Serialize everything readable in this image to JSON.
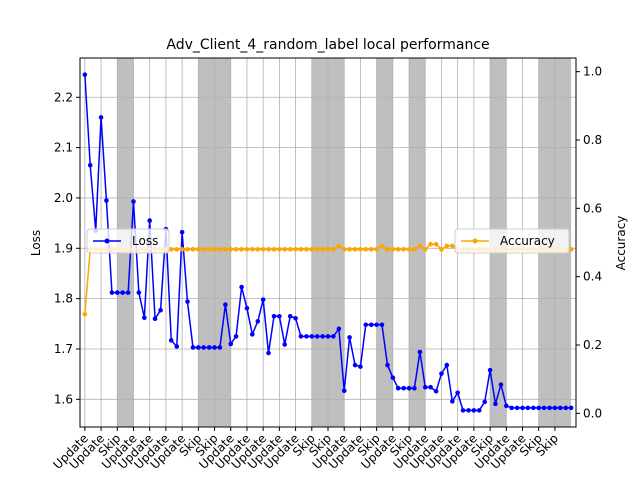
{
  "chart_data": {
    "type": "line",
    "title": "Adv_Client_4_random_label local performance",
    "ylabel_left": "Loss",
    "ylabel_right": "Accuracy",
    "ylim_left": [
      1.545,
      2.278
    ],
    "ylim_right": [
      -0.04,
      1.04
    ],
    "yticks_left": [
      1.6,
      1.7,
      1.8,
      1.9,
      2.0,
      2.1,
      2.2
    ],
    "yticks_right": [
      0.0,
      0.2,
      0.4,
      0.6,
      0.8,
      1.0
    ],
    "xlim": [
      -0.3,
      30.3
    ],
    "grid": true,
    "legend_left": {
      "label": "Loss",
      "placement": "center-left"
    },
    "legend_right": {
      "label": "Accuracy",
      "placement": "center-right"
    },
    "x_categories": [
      "Update",
      "Update",
      "Skip",
      "Update",
      "Update",
      "Update",
      "Update",
      "Skip",
      "Skip",
      "Update",
      "Update",
      "Update",
      "Update",
      "Update",
      "Skip",
      "Skip",
      "Update",
      "Update",
      "Skip",
      "Update",
      "Skip",
      "Update",
      "Update",
      "Update",
      "Update",
      "Skip",
      "Update",
      "Update",
      "Skip",
      "Skip"
    ],
    "skip_indices": [
      2,
      7,
      8,
      14,
      15,
      18,
      20,
      25,
      28,
      29
    ],
    "colors": {
      "loss": "#0000ff",
      "accuracy": "#ffa500",
      "skip_band": "#808080",
      "grid": "#b0b0b0"
    },
    "series": [
      {
        "name": "Loss",
        "x": [
          0,
          0.33,
          0.67,
          1,
          1.33,
          1.67,
          2,
          2.33,
          2.67,
          3,
          3.33,
          3.67,
          4,
          4.33,
          4.67,
          5,
          5.33,
          5.67,
          6,
          6.33,
          6.67,
          7,
          7.33,
          7.67,
          8,
          8.33,
          8.67,
          9,
          9.33,
          9.67,
          10,
          10.33,
          10.67,
          11,
          11.33,
          11.67,
          12,
          12.33,
          12.67,
          13,
          13.33,
          13.67,
          14,
          14.33,
          14.67,
          15,
          15.33,
          15.67,
          16,
          16.33,
          16.67,
          17,
          17.33,
          17.67,
          18,
          18.33,
          18.67,
          19,
          19.33,
          19.67,
          20,
          20.33,
          20.67,
          21,
          21.33,
          21.67,
          22,
          22.33,
          22.67,
          23,
          23.33,
          23.67,
          24,
          24.33,
          24.67,
          25,
          25.33,
          25.67,
          26,
          26.33,
          26.67,
          27,
          27.33,
          27.67,
          28,
          28.33,
          28.67,
          29,
          29.33,
          29.67,
          30
        ],
        "values": [
          2.245,
          2.065,
          1.935,
          2.16,
          1.995,
          1.812,
          1.812,
          1.812,
          1.812,
          1.993,
          1.812,
          1.762,
          1.955,
          1.76,
          1.777,
          1.938,
          1.717,
          1.705,
          1.932,
          1.794,
          1.703,
          1.703,
          1.703,
          1.703,
          1.703,
          1.703,
          1.788,
          1.71,
          1.725,
          1.823,
          1.781,
          1.729,
          1.755,
          1.798,
          1.692,
          1.765,
          1.765,
          1.709,
          1.765,
          1.761,
          1.725,
          1.725,
          1.725,
          1.725,
          1.725,
          1.725,
          1.725,
          1.74,
          1.617,
          1.723,
          1.668,
          1.665,
          1.748,
          1.748,
          1.748,
          1.748,
          1.668,
          1.643,
          1.622,
          1.622,
          1.622,
          1.622,
          1.694,
          1.624,
          1.624,
          1.616,
          1.651,
          1.668,
          1.596,
          1.613,
          1.578,
          1.578,
          1.578,
          1.578,
          1.595,
          1.658,
          1.591,
          1.629,
          1.587,
          1.583,
          1.583,
          1.583,
          1.583,
          1.583,
          1.583,
          1.583,
          1.583,
          1.583,
          1.583,
          1.583,
          1.583
        ]
      },
      {
        "name": "Accuracy",
        "x": [
          0,
          0.33,
          0.67,
          1,
          1.33,
          1.67,
          2,
          2.33,
          2.67,
          3,
          3.33,
          3.67,
          4,
          4.33,
          4.67,
          5,
          5.33,
          5.67,
          6,
          6.33,
          6.67,
          7,
          7.33,
          7.67,
          8,
          8.33,
          8.67,
          9,
          9.33,
          9.67,
          10,
          10.33,
          10.67,
          11,
          11.33,
          11.67,
          12,
          12.33,
          12.67,
          13,
          13.33,
          13.67,
          14,
          14.33,
          14.67,
          15,
          15.33,
          15.67,
          16,
          16.33,
          16.67,
          17,
          17.33,
          17.67,
          18,
          18.33,
          18.67,
          19,
          19.33,
          19.67,
          20,
          20.33,
          20.67,
          21,
          21.33,
          21.67,
          22,
          22.33,
          22.67,
          23,
          23.33,
          23.67,
          24,
          24.33,
          24.67,
          25,
          25.33,
          25.67,
          26,
          26.33,
          26.67,
          27,
          27.33,
          27.67,
          28,
          28.33,
          28.67,
          29,
          29.33,
          29.67,
          30
        ],
        "values": [
          0.29,
          0.48,
          0.48,
          0.48,
          0.48,
          0.48,
          0.48,
          0.48,
          0.48,
          0.48,
          0.48,
          0.48,
          0.48,
          0.48,
          0.48,
          0.48,
          0.48,
          0.48,
          0.48,
          0.48,
          0.48,
          0.48,
          0.48,
          0.48,
          0.48,
          0.48,
          0.48,
          0.48,
          0.48,
          0.48,
          0.48,
          0.48,
          0.48,
          0.48,
          0.48,
          0.48,
          0.48,
          0.48,
          0.48,
          0.48,
          0.48,
          0.48,
          0.48,
          0.48,
          0.48,
          0.48,
          0.48,
          0.49,
          0.48,
          0.48,
          0.48,
          0.48,
          0.48,
          0.48,
          0.48,
          0.49,
          0.48,
          0.48,
          0.48,
          0.48,
          0.48,
          0.48,
          0.49,
          0.48,
          0.495,
          0.495,
          0.48,
          0.49,
          0.49,
          0.48,
          0.48,
          0.48,
          0.48,
          0.48,
          0.48,
          0.48,
          0.48,
          0.48,
          0.48,
          0.48,
          0.48,
          0.48,
          0.48,
          0.48,
          0.48,
          0.48,
          0.48,
          0.48,
          0.48,
          0.48,
          0.48
        ]
      }
    ]
  }
}
